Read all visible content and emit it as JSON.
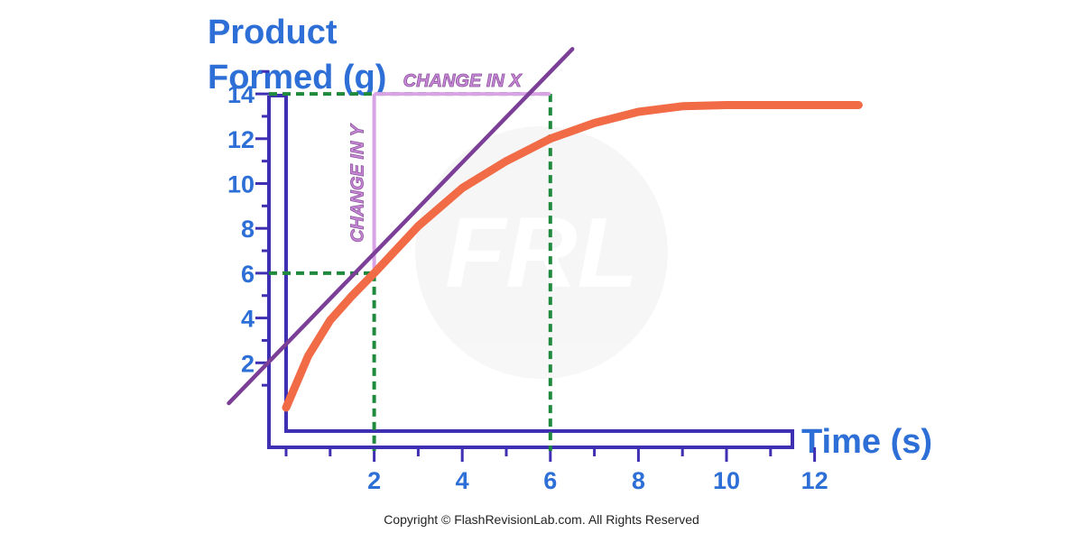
{
  "chart_data": {
    "type": "line",
    "ylabel_line1": "Product",
    "ylabel_line2": "Formed (g)",
    "xlabel": "Time (s)",
    "x_ticks": [
      2,
      4,
      6,
      8,
      10,
      12
    ],
    "y_ticks": [
      2,
      4,
      6,
      8,
      10,
      12,
      14
    ],
    "xlim": [
      0,
      12
    ],
    "ylim": [
      0,
      15
    ],
    "grid": false,
    "series": [
      {
        "color": "#f26b47",
        "x": [
          0,
          0.5,
          1,
          1.5,
          2,
          3,
          4,
          5,
          6,
          7,
          8,
          9,
          10,
          11,
          12,
          13
        ],
        "y": [
          0,
          2.3,
          3.9,
          5.0,
          6.0,
          8.1,
          9.8,
          11.0,
          12.0,
          12.7,
          13.2,
          13.45,
          13.5,
          13.5,
          13.5,
          13.5
        ]
      }
    ],
    "tangent": {
      "color": "#7b3f98",
      "x": [
        -1.3,
        6.5
      ],
      "y": [
        0.2,
        16.0
      ]
    },
    "guides": {
      "color": "#1f8a3d",
      "points": [
        {
          "x": 2,
          "y": 6
        },
        {
          "x": 6,
          "y": 14
        }
      ]
    },
    "annotations": {
      "change_x": "CHANGE IN X",
      "change_y": "CHANGE IN Y",
      "color": "#d9a4e6"
    },
    "axis_color": "#3f2fb3",
    "watermark_text": "FRL"
  },
  "footer": {
    "copyright": "Copyright © FlashRevisionLab.com. All Rights Reserved"
  }
}
